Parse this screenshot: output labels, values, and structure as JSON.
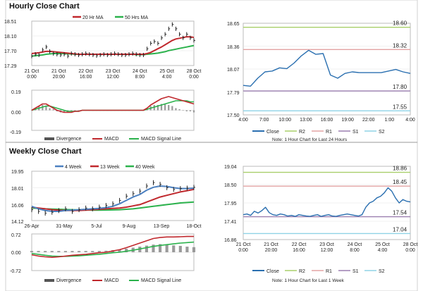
{
  "colors": {
    "ma20": "#c0282d",
    "ma50": "#2bb24c",
    "price": "#222222",
    "divergence": "#9a9a9a",
    "macd": "#c0282d",
    "signal": "#2bb24c",
    "close": "#2a6fb0",
    "r2": "#a8cf6a",
    "r1": "#e3a3a3",
    "s1": "#9c7fb0",
    "s2": "#8fd3e6",
    "wk4": "#4c80c0",
    "wk13": "#c0282d",
    "wk40": "#2bb24c"
  },
  "hourly": {
    "title": "Hourly Close Chart",
    "legend": [
      "20 Hr MA",
      "50 Hrs MA"
    ],
    "price_chart": {
      "type": "line",
      "yticks": [
        "18.51",
        "18.10",
        "17.70",
        "17.29"
      ],
      "ylim": [
        17.29,
        18.51
      ],
      "xticks": [
        [
          "21 Oct",
          "0:00"
        ],
        [
          "21 Oct",
          "20:00"
        ],
        [
          "22 Oct",
          "16:00"
        ],
        [
          "23 Oct",
          "12:00"
        ],
        [
          "24 Oct",
          "8:00"
        ],
        [
          "25 Oct",
          "4:00"
        ],
        [
          "28 Oct",
          "0:00"
        ]
      ],
      "close": [
        17.55,
        17.6,
        17.58,
        17.72,
        17.8,
        17.68,
        17.62,
        17.6,
        17.58,
        17.6,
        17.55,
        17.62,
        17.6,
        17.58,
        17.6,
        17.62,
        17.6,
        17.58,
        17.56,
        17.58,
        17.6,
        17.58,
        17.6,
        17.62,
        17.6,
        17.58,
        17.58,
        17.6,
        17.62,
        17.6,
        17.58,
        17.58,
        17.75,
        17.9,
        17.95,
        17.9,
        18.05,
        18.15,
        18.3,
        18.42,
        18.3,
        18.15,
        18.05,
        18.15,
        18.05,
        17.98
      ],
      "ma20": [
        17.62,
        17.63,
        17.64,
        17.66,
        17.68,
        17.68,
        17.67,
        17.66,
        17.65,
        17.64,
        17.63,
        17.62,
        17.61,
        17.6,
        17.6,
        17.6,
        17.6,
        17.6,
        17.6,
        17.6,
        17.6,
        17.6,
        17.6,
        17.6,
        17.6,
        17.6,
        17.6,
        17.6,
        17.6,
        17.6,
        17.6,
        17.6,
        17.62,
        17.65,
        17.7,
        17.75,
        17.8,
        17.86,
        17.92,
        17.98,
        18.02,
        18.04,
        18.06,
        18.08,
        18.08,
        18.06
      ],
      "ma50": [
        17.55,
        17.56,
        17.57,
        17.58,
        17.6,
        17.61,
        17.62,
        17.62,
        17.62,
        17.62,
        17.61,
        17.61,
        17.6,
        17.6,
        17.6,
        17.6,
        17.6,
        17.6,
        17.6,
        17.6,
        17.6,
        17.6,
        17.6,
        17.6,
        17.6,
        17.6,
        17.6,
        17.6,
        17.6,
        17.59,
        17.59,
        17.59,
        17.6,
        17.61,
        17.62,
        17.63,
        17.65,
        17.67,
        17.7,
        17.72,
        17.74,
        17.76,
        17.78,
        17.8,
        17.82,
        17.84
      ]
    },
    "macd_chart": {
      "type": "bar",
      "yticks": [
        "0.19",
        "0.00",
        "-0.19"
      ],
      "ylim": [
        -0.19,
        0.19
      ],
      "legend": [
        "Divergence",
        "MACD",
        "MACD Signal Line"
      ],
      "divergence": [
        0.0,
        0.02,
        0.04,
        0.05,
        0.04,
        0.02,
        0.01,
        -0.01,
        -0.02,
        -0.02,
        -0.02,
        -0.01,
        -0.01,
        0.0,
        0.0,
        0.0,
        0.0,
        0.0,
        0.0,
        0.0,
        0.0,
        0.0,
        0.0,
        0.0,
        0.0,
        0.0,
        0.0,
        0.0,
        0.0,
        0.0,
        0.0,
        0.0,
        0.02,
        0.04,
        0.05,
        0.05,
        0.06,
        0.06,
        0.05,
        0.04,
        0.02,
        0.01,
        0.0,
        -0.01,
        -0.01,
        -0.02
      ],
      "macd": [
        0.0,
        0.02,
        0.04,
        0.06,
        0.06,
        0.04,
        0.02,
        0.0,
        -0.01,
        -0.02,
        -0.02,
        -0.02,
        -0.01,
        -0.01,
        0.0,
        0.0,
        0.0,
        0.0,
        0.0,
        0.0,
        0.0,
        0.0,
        0.0,
        0.0,
        0.0,
        0.0,
        0.0,
        0.0,
        0.0,
        0.0,
        0.0,
        0.0,
        0.02,
        0.05,
        0.07,
        0.09,
        0.11,
        0.12,
        0.13,
        0.12,
        0.11,
        0.1,
        0.09,
        0.08,
        0.07,
        0.06
      ],
      "signal": [
        0.0,
        0.01,
        0.02,
        0.03,
        0.04,
        0.04,
        0.03,
        0.02,
        0.01,
        0.0,
        -0.01,
        -0.01,
        -0.01,
        -0.01,
        0.0,
        0.0,
        0.0,
        0.0,
        0.0,
        0.0,
        0.0,
        0.0,
        0.0,
        0.0,
        0.0,
        0.0,
        0.0,
        0.0,
        0.0,
        0.0,
        0.0,
        0.0,
        0.01,
        0.02,
        0.03,
        0.04,
        0.05,
        0.06,
        0.07,
        0.08,
        0.09,
        0.09,
        0.09,
        0.09,
        0.08,
        0.08
      ]
    }
  },
  "intraday": {
    "type": "line",
    "yticks": [
      "18.65",
      "18.36",
      "18.07",
      "17.79",
      "17.50"
    ],
    "ylim": [
      17.5,
      18.65
    ],
    "xticks": [
      "4:00",
      "7:00",
      "10:00",
      "13:00",
      "16:00",
      "19:00",
      "22:00",
      "1:00",
      "4:00"
    ],
    "levels": [
      {
        "name": "R2",
        "value": 18.6,
        "label": "18.60"
      },
      {
        "name": "R1",
        "value": 18.32,
        "label": "18.32"
      },
      {
        "name": "S1",
        "value": 17.8,
        "label": "17.80"
      },
      {
        "name": "S2",
        "value": 17.55,
        "label": "17.55"
      }
    ],
    "close": [
      17.87,
      17.86,
      17.96,
      18.04,
      18.05,
      18.09,
      18.08,
      18.15,
      18.24,
      18.31,
      18.26,
      18.27,
      18.0,
      17.96,
      18.02,
      18.04,
      18.03,
      18.03,
      18.03,
      18.03,
      18.05,
      18.07,
      18.04,
      18.02
    ],
    "legend": [
      "Close",
      "R2",
      "R1",
      "S1",
      "S2"
    ],
    "note": "Note: 1 Hour Chart for Last 24 Hours"
  },
  "weekly": {
    "title": "Weekly Close Chart",
    "legend": [
      "4 Week",
      "13 Week",
      "40 Week"
    ],
    "price_chart": {
      "type": "line",
      "yticks": [
        "19.95",
        "18.01",
        "16.06",
        "14.12"
      ],
      "ylim": [
        14.12,
        19.95
      ],
      "xticks": [
        "26-Apr",
        "31-May",
        "5-Jul",
        "9-Aug",
        "13-Sep",
        "18-Oct"
      ],
      "close": [
        15.4,
        15.2,
        15.0,
        15.1,
        15.3,
        15.5,
        15.2,
        15.4,
        15.6,
        15.5,
        15.7,
        15.9,
        16.1,
        16.5,
        17.0,
        17.3,
        17.6,
        18.2,
        18.6,
        18.4,
        18.0,
        17.8,
        17.9,
        17.95,
        18.05
      ],
      "wk4": [
        15.8,
        15.5,
        15.3,
        15.2,
        15.2,
        15.3,
        15.35,
        15.4,
        15.45,
        15.5,
        15.55,
        15.65,
        15.8,
        16.1,
        16.5,
        16.9,
        17.2,
        17.7,
        18.05,
        18.2,
        18.15,
        18.0,
        17.9,
        17.9,
        17.95
      ],
      "wk13": [
        15.7,
        15.6,
        15.5,
        15.4,
        15.35,
        15.3,
        15.3,
        15.3,
        15.35,
        15.4,
        15.45,
        15.5,
        15.55,
        15.6,
        15.7,
        15.85,
        16.0,
        16.3,
        16.6,
        16.9,
        17.1,
        17.3,
        17.5,
        17.65,
        17.8
      ],
      "wk40": [
        15.6,
        15.55,
        15.5,
        15.48,
        15.45,
        15.42,
        15.4,
        15.38,
        15.36,
        15.35,
        15.35,
        15.36,
        15.38,
        15.4,
        15.45,
        15.5,
        15.6,
        15.7,
        15.8,
        15.9,
        16.0,
        16.1,
        16.2,
        16.25,
        16.3
      ]
    },
    "macd_chart": {
      "type": "bar",
      "yticks": [
        "0.72",
        "0.00",
        "-0.72"
      ],
      "ylim": [
        -0.72,
        0.72
      ],
      "legend": [
        "Divergence",
        "MACD",
        "MACD Signal Line"
      ],
      "divergence": [
        0.05,
        0.05,
        0.05,
        0.05,
        0.05,
        0.05,
        0.05,
        0.05,
        0.05,
        0.05,
        0.05,
        0.06,
        0.08,
        0.1,
        0.14,
        0.18,
        0.22,
        0.26,
        0.3,
        0.32,
        0.3,
        0.27,
        0.25,
        0.22,
        0.2
      ],
      "macd": [
        -0.1,
        -0.15,
        -0.18,
        -0.2,
        -0.18,
        -0.15,
        -0.12,
        -0.1,
        -0.08,
        -0.05,
        -0.02,
        0.0,
        0.05,
        0.1,
        0.18,
        0.27,
        0.36,
        0.45,
        0.54,
        0.58,
        0.6,
        0.6,
        0.61,
        0.62,
        0.62
      ],
      "signal": [
        -0.05,
        -0.08,
        -0.12,
        -0.15,
        -0.16,
        -0.16,
        -0.15,
        -0.14,
        -0.12,
        -0.1,
        -0.08,
        -0.05,
        -0.02,
        0.0,
        0.04,
        0.08,
        0.13,
        0.18,
        0.23,
        0.27,
        0.3,
        0.33,
        0.36,
        0.38,
        0.4
      ]
    }
  },
  "weekly_hourly": {
    "type": "line",
    "yticks": [
      "19.04",
      "18.50",
      "17.95",
      "17.41",
      "16.86"
    ],
    "ylim": [
      16.86,
      19.04
    ],
    "xticks": [
      [
        "21 Oct",
        "0:00"
      ],
      [
        "21 Oct",
        "20:00"
      ],
      [
        "22 Oct",
        "16:00"
      ],
      [
        "23 Oct",
        "12:00"
      ],
      [
        "24 Oct",
        "8:00"
      ],
      [
        "25 Oct",
        "4:00"
      ],
      [
        "28 Oct",
        "0:00"
      ]
    ],
    "levels": [
      {
        "name": "R2",
        "value": 18.86,
        "label": "18.86"
      },
      {
        "name": "R1",
        "value": 18.45,
        "label": "18.45"
      },
      {
        "name": "S1",
        "value": 17.54,
        "label": "17.54"
      },
      {
        "name": "S2",
        "value": 17.04,
        "label": "17.04"
      }
    ],
    "close": [
      17.6,
      17.62,
      17.58,
      17.7,
      17.65,
      17.72,
      17.82,
      17.66,
      17.6,
      17.58,
      17.62,
      17.6,
      17.56,
      17.58,
      17.55,
      17.6,
      17.58,
      17.56,
      17.55,
      17.58,
      17.6,
      17.55,
      17.58,
      17.6,
      17.56,
      17.55,
      17.58,
      17.6,
      17.62,
      17.6,
      17.58,
      17.56,
      17.6,
      17.82,
      17.95,
      18.0,
      18.1,
      18.15,
      18.25,
      18.4,
      18.3,
      18.1,
      17.95,
      18.05,
      18.0,
      17.98
    ],
    "legend": [
      "Close",
      "R2",
      "R1",
      "S1",
      "S2"
    ],
    "note": "Note: 1 Hour Chart for Last 1 Week"
  }
}
